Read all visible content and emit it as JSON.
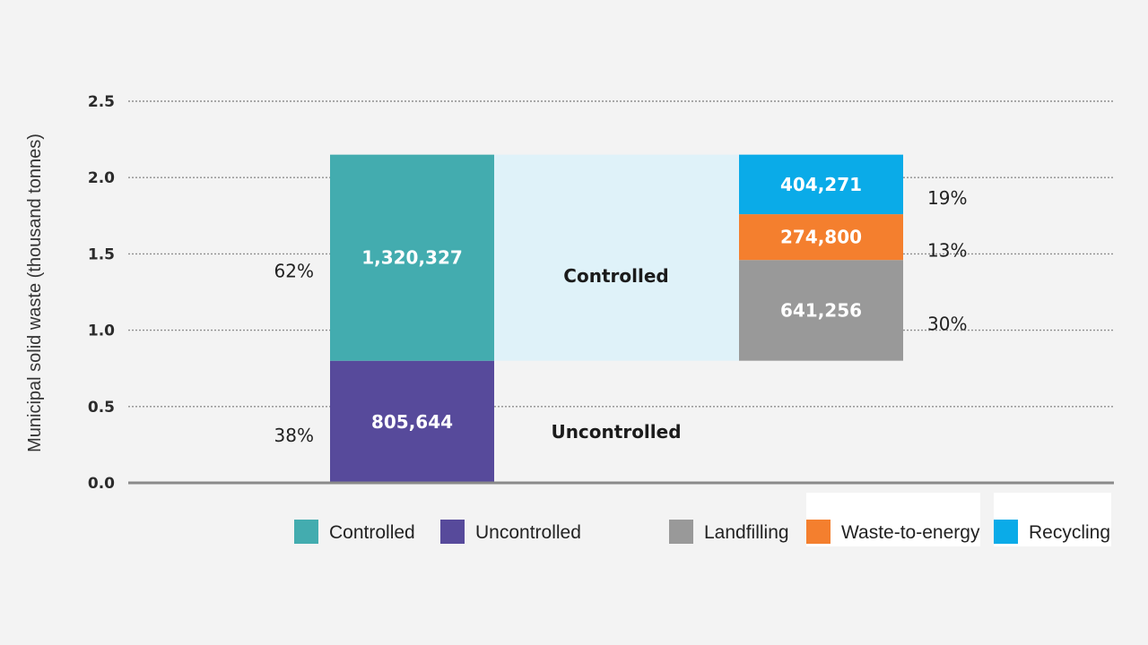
{
  "chart_data": {
    "type": "bar",
    "ylabel": "Municipal solid waste (thousand tonnes)",
    "ylim": [
      0,
      2.5
    ],
    "yticks": [
      "0.0",
      "0.5",
      "1.0",
      "1.5",
      "2.0",
      "2.5"
    ],
    "grid": true,
    "legend_position": "bottom",
    "colors": {
      "Controlled": "#43acaf",
      "Uncontrolled": "#574a9b",
      "Landfilling": "#999999",
      "Waste-to-energy": "#f47f2e",
      "Recycling": "#0aabe8",
      "flow": "#dff2f9"
    },
    "bars": [
      {
        "segments": [
          {
            "name": "Uncontrolled",
            "value": 805644,
            "height": 0.8,
            "label": "805,644",
            "percent": "38%"
          },
          {
            "name": "Controlled",
            "value": 1320327,
            "height": 1.35,
            "label": "1,320,327",
            "percent": "62%"
          }
        ]
      },
      {
        "base": 0.8,
        "segments": [
          {
            "name": "Landfilling",
            "value": 641256,
            "height": 0.66,
            "label": "641,256",
            "percent": "30%"
          },
          {
            "name": "Waste-to-energy",
            "value": 274800,
            "height": 0.3,
            "label": "274,800",
            "percent": "13%"
          },
          {
            "name": "Recycling",
            "value": 404271,
            "height": 0.39,
            "label": "404,271",
            "percent": "19%"
          }
        ]
      }
    ],
    "region_labels": {
      "controlled": "Controlled",
      "uncontrolled": "Uncontrolled"
    },
    "legend": [
      "Controlled",
      "Uncontrolled",
      "Landfilling",
      "Waste-to-energy",
      "Recycling"
    ]
  }
}
